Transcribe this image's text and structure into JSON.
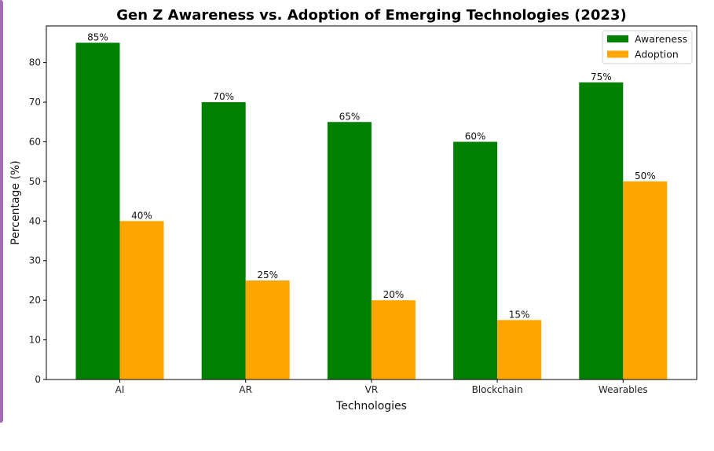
{
  "chart_data": {
    "type": "bar",
    "title": "Gen Z Awareness vs. Adoption of Emerging Technologies (2023)",
    "xlabel": "Technologies",
    "ylabel": "Percentage (%)",
    "categories": [
      "AI",
      "AR",
      "VR",
      "Blockchain",
      "Wearables"
    ],
    "series": [
      {
        "name": "Awareness",
        "color": "#008000",
        "values": [
          85,
          70,
          65,
          60,
          75
        ],
        "labels": [
          "85%",
          "70%",
          "65%",
          "60%",
          "75%"
        ]
      },
      {
        "name": "Adoption",
        "color": "#ffa500",
        "values": [
          40,
          25,
          20,
          15,
          50
        ],
        "labels": [
          "40%",
          "25%",
          "20%",
          "15%",
          "50%"
        ]
      }
    ],
    "ylim": [
      0,
      89.25
    ],
    "yticks": [
      0,
      10,
      20,
      30,
      40,
      50,
      60,
      70,
      80
    ],
    "grid": false,
    "legend_position": "top-right"
  }
}
